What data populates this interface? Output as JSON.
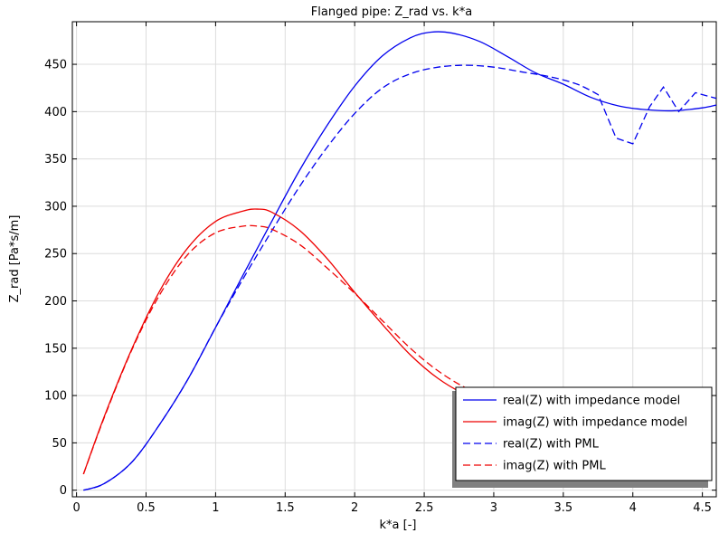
{
  "chart_data": {
    "type": "line",
    "title": "Flanged pipe: Z_rad vs. k*a",
    "xlabel": "k*a [-]",
    "ylabel": "Z_rad [Pa*s/m]",
    "xlim": [
      -0.03,
      4.6
    ],
    "ylim": [
      -7,
      495
    ],
    "x_ticks": [
      0,
      0.5,
      1,
      1.5,
      2,
      2.5,
      3,
      3.5,
      4,
      4.5
    ],
    "x_tick_labels": [
      "0",
      "0.5",
      "1",
      "1.5",
      "2",
      "2.5",
      "3",
      "3.5",
      "4",
      "4.5"
    ],
    "y_ticks": [
      0,
      50,
      100,
      150,
      200,
      250,
      300,
      350,
      400,
      450
    ],
    "y_tick_labels": [
      "0",
      "50",
      "100",
      "150",
      "200",
      "250",
      "300",
      "350",
      "400",
      "450"
    ],
    "grid": true,
    "legend_position": "bottom-right",
    "series": [
      {
        "name": "real(Z) with impedance model",
        "color": "#0000ee",
        "dash": "solid",
        "x": [
          0.05,
          0.2,
          0.4,
          0.6,
          0.8,
          1.0,
          1.2,
          1.4,
          1.6,
          1.8,
          2.0,
          2.2,
          2.4,
          2.55,
          2.7,
          2.9,
          3.1,
          3.3,
          3.5,
          3.7,
          3.9,
          4.1,
          4.3,
          4.5,
          4.6
        ],
        "y": [
          0,
          7,
          30,
          70,
          117,
          172,
          228,
          283,
          337,
          385,
          427,
          459,
          478,
          484,
          483,
          474,
          458,
          441,
          429,
          415,
          406,
          402,
          401,
          404,
          407
        ]
      },
      {
        "name": "imag(Z) with impedance model",
        "color": "#ee0000",
        "dash": "solid",
        "x": [
          0.05,
          0.2,
          0.4,
          0.6,
          0.8,
          1.0,
          1.2,
          1.3,
          1.4,
          1.6,
          1.8,
          2.0,
          2.2,
          2.4,
          2.6,
          2.8,
          3.0,
          3.1
        ],
        "y": [
          17,
          78,
          150,
          211,
          256,
          284,
          295,
          297,
          294,
          275,
          245,
          209,
          175,
          143,
          118,
          101,
          92,
          90
        ]
      },
      {
        "name": "real(Z) with PML",
        "color": "#0000ee",
        "dash": "dashed",
        "x": [
          0.05,
          0.2,
          0.4,
          0.6,
          0.8,
          1.0,
          1.2,
          1.4,
          1.6,
          1.8,
          2.0,
          2.2,
          2.4,
          2.6,
          2.8,
          3.0,
          3.2,
          3.4,
          3.6,
          3.75,
          3.88,
          4.0,
          4.12,
          4.22,
          4.33,
          4.45,
          4.55,
          4.6
        ],
        "y": [
          0,
          7,
          30,
          70,
          117,
          172,
          224,
          273,
          320,
          362,
          398,
          425,
          440,
          447,
          449,
          447,
          442,
          437,
          429,
          418,
          372,
          366,
          405,
          426,
          400,
          420,
          416,
          414
        ]
      },
      {
        "name": "imag(Z) with PML",
        "color": "#ee0000",
        "dash": "dashed",
        "x": [
          0.05,
          0.2,
          0.4,
          0.6,
          0.8,
          1.0,
          1.2,
          1.3,
          1.4,
          1.6,
          1.8,
          2.0,
          2.2,
          2.4,
          2.6,
          2.8,
          3.0,
          3.1
        ],
        "y": [
          17,
          77,
          149,
          207,
          249,
          272,
          279,
          279,
          276,
          260,
          235,
          208,
          179,
          150,
          126,
          108,
          96,
          93
        ]
      }
    ]
  }
}
